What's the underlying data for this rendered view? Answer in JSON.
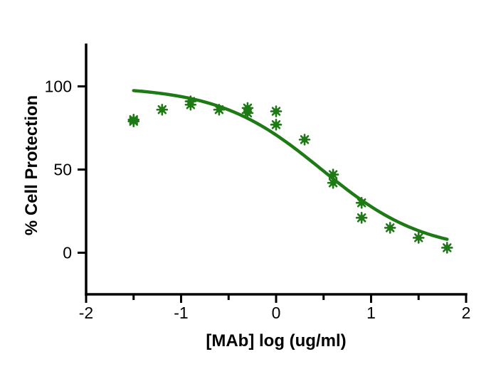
{
  "chart_data": {
    "type": "scatter",
    "title": "",
    "xlabel": "[MAb] log (ug/ml)",
    "ylabel": "% Cell Protection",
    "xlim": [
      -2,
      2
    ],
    "ylim": [
      -25,
      125
    ],
    "x_ticks": [
      "-2",
      "-1",
      "0",
      "1",
      "2"
    ],
    "x_tick_values": [
      -2,
      -1,
      0,
      1,
      2
    ],
    "x_minor_tick_values": [
      -1.5,
      -0.5,
      0.5,
      1.5
    ],
    "y_ticks": [
      "0",
      "50",
      "100"
    ],
    "y_tick_values": [
      0,
      50,
      100
    ],
    "grid": false,
    "legend": "none",
    "color": "#1e7a14",
    "points": {
      "x": [
        -1.5,
        -1.5,
        -1.2,
        -0.9,
        -0.9,
        -0.6,
        -0.3,
        -0.3,
        0,
        0,
        0.3,
        0.6,
        0.6,
        0.9,
        0.9,
        1.2,
        1.5,
        1.8
      ],
      "y": [
        80,
        79,
        86,
        91,
        89,
        86,
        87,
        84,
        85,
        77,
        68,
        47,
        42,
        30,
        21,
        15,
        9,
        3
      ]
    },
    "fit_curve": {
      "model": "four-parameter logistic",
      "x_range": [
        -1.5,
        1.8
      ],
      "top": 100,
      "bottom": 0,
      "log_ec50": 0.48,
      "hill_slope": -0.8
    }
  }
}
